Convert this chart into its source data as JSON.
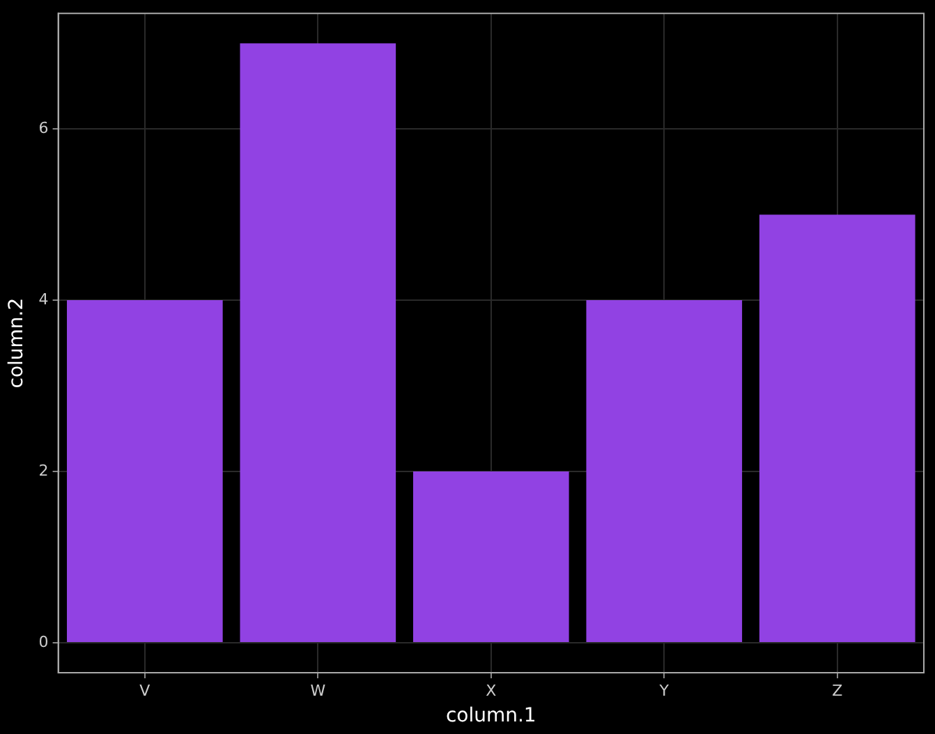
{
  "chart_data": {
    "type": "bar",
    "xlabel": "column.1",
    "ylabel": "column.2",
    "categories": [
      "V",
      "W",
      "X",
      "Y",
      "Z"
    ],
    "values": [
      4,
      7,
      2,
      4,
      5
    ],
    "color": "#9142e3",
    "ylim": [
      -0.35,
      7.35
    ],
    "yticks": [
      0,
      2,
      4,
      6
    ],
    "grid": true
  }
}
